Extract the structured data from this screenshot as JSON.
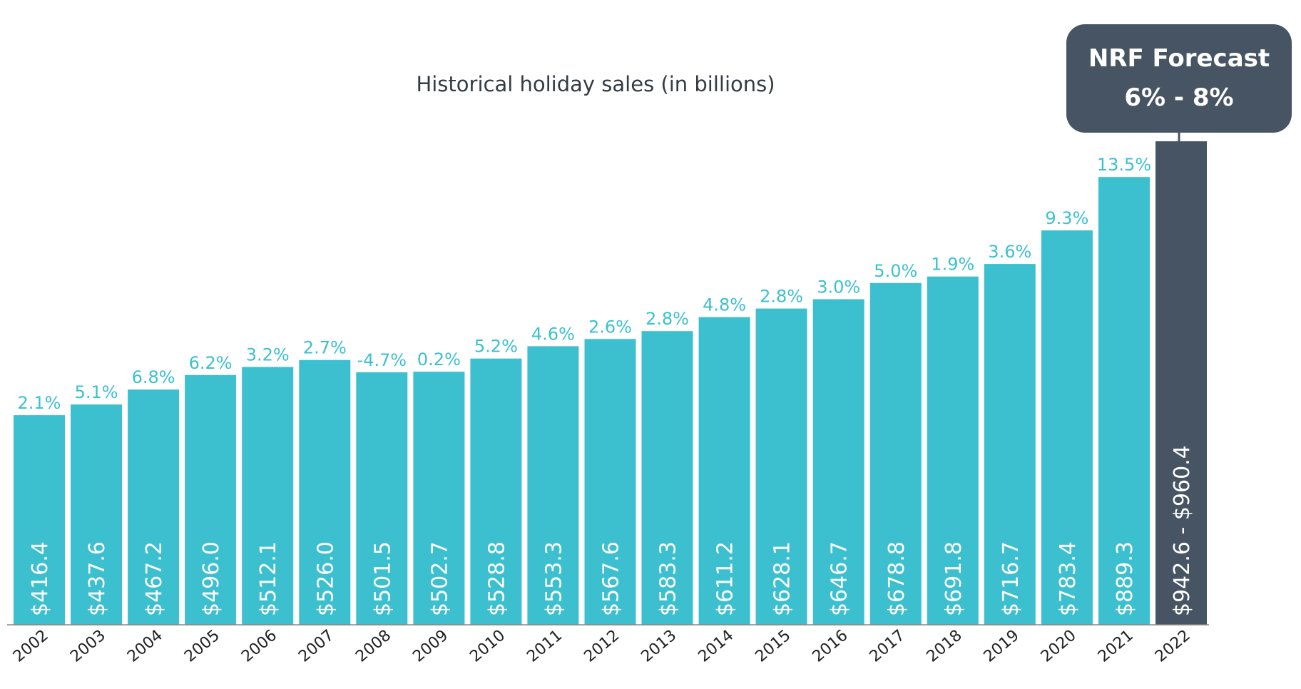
{
  "chart_data": {
    "type": "bar",
    "title": "Historical holiday sales (in billions)",
    "xlabel": "",
    "ylabel": "",
    "ylim": [
      0,
      1000
    ],
    "grid": false,
    "legend": "none",
    "categories": [
      "2002",
      "2003",
      "2004",
      "2005",
      "2006",
      "2007",
      "2008",
      "2009",
      "2010",
      "2011",
      "2012",
      "2013",
      "2014",
      "2015",
      "2016",
      "2017",
      "2018",
      "2019",
      "2020",
      "2021",
      "2022"
    ],
    "values": [
      416.4,
      437.6,
      467.2,
      496.0,
      512.1,
      526.0,
      501.5,
      502.7,
      528.8,
      553.3,
      567.6,
      583.3,
      611.2,
      628.1,
      646.7,
      678.8,
      691.8,
      716.7,
      783.4,
      889.3,
      960.4
    ],
    "value_labels": [
      "$416.4",
      "$437.6",
      "$467.2",
      "$496.0",
      "$512.1",
      "$526.0",
      "$501.5",
      "$502.7",
      "$528.8",
      "$553.3",
      "$567.6",
      "$583.3",
      "$611.2",
      "$628.1",
      "$646.7",
      "$678.8",
      "$691.8",
      "$716.7",
      "$783.4",
      "$889.3",
      "$942.6 - $960.4"
    ],
    "growth_labels": [
      "2.1%",
      "5.1%",
      "6.8%",
      "6.2%",
      "3.2%",
      "2.7%",
      "-4.7%",
      "0.2%",
      "5.2%",
      "4.6%",
      "2.6%",
      "2.8%",
      "4.8%",
      "2.8%",
      "3.0%",
      "5.0%",
      "1.9%",
      "3.6%",
      "9.3%",
      "13.5%",
      ""
    ],
    "forecast_range": [
      942.6,
      960.4
    ],
    "callout": {
      "line1": "NRF Forecast",
      "line2": "6% - 8%"
    },
    "colors": {
      "bar": "#3cc0d0",
      "forecast_bar": "#465463",
      "growth_label": "#3cc0d0",
      "axis": "#888888"
    }
  }
}
